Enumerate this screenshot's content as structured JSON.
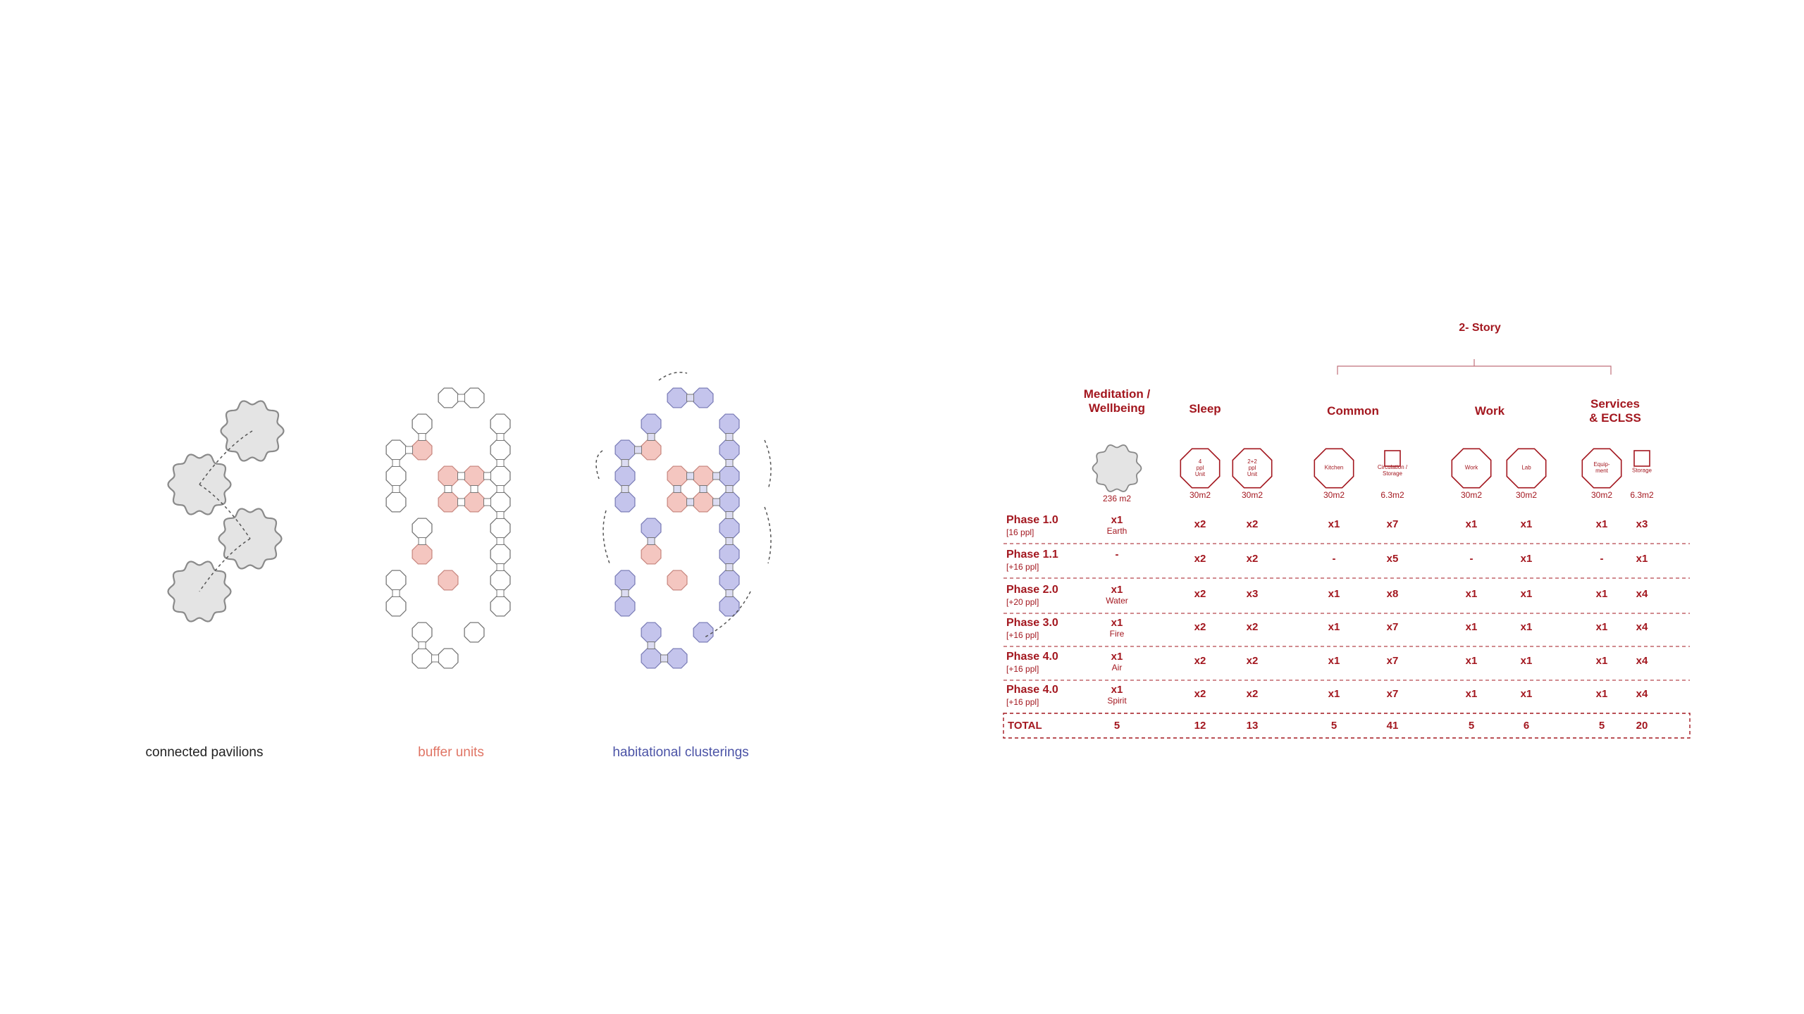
{
  "colors": {
    "accent": "#a3171f",
    "buffer": "#f4c6c0",
    "habitation": "#c4c4ec",
    "pavilion": "#e4e4e4"
  },
  "captions": {
    "connected": "connected pavilions",
    "buffer": "buffer units",
    "habitational": "habitational clusterings"
  },
  "table": {
    "story_label": "2- Story",
    "categories": [
      {
        "key": "meditation",
        "label_1": "Meditation /",
        "label_2": "Wellbeing"
      },
      {
        "key": "sleep",
        "label_1": "Sleep",
        "label_2": ""
      },
      {
        "key": "common",
        "label_1": "Common",
        "label_2": ""
      },
      {
        "key": "work",
        "label_1": "Work",
        "label_2": ""
      },
      {
        "key": "services",
        "label_1": "Services",
        "label_2": "& ECLSS"
      }
    ],
    "units": [
      {
        "shape": "blob",
        "text": "",
        "area": "236 m2"
      },
      {
        "shape": "octagon",
        "text_lines": [
          "4",
          "ppl",
          "Unit"
        ],
        "area": "30m2"
      },
      {
        "shape": "octagon",
        "text_lines": [
          "2+2",
          "ppl",
          "Unit"
        ],
        "area": "30m2"
      },
      {
        "shape": "octagon",
        "text_lines": [
          "Kitchen"
        ],
        "area": "30m2"
      },
      {
        "shape": "square",
        "text_lines": [
          "Circulation /",
          "Storage"
        ],
        "area": "6.3m2"
      },
      {
        "shape": "octagon",
        "text_lines": [
          "Work"
        ],
        "area": "30m2"
      },
      {
        "shape": "octagon",
        "text_lines": [
          "Lab"
        ],
        "area": "30m2"
      },
      {
        "shape": "octagon",
        "text_lines": [
          "Equip-",
          "ment"
        ],
        "area": "30m2"
      },
      {
        "shape": "square",
        "text_lines": [
          "Storage"
        ],
        "area": "6.3m2"
      }
    ],
    "rows": [
      {
        "phase": "Phase 1.0",
        "people": "[16 ppl]",
        "element": "Earth",
        "values": [
          "x1",
          "x2",
          "x2",
          "x1",
          "x7",
          "x1",
          "x1",
          "x1",
          "x3"
        ]
      },
      {
        "phase": "Phase 1.1",
        "people": "[+16 ppl]",
        "element": "",
        "values": [
          "-",
          "x2",
          "x2",
          "-",
          "x5",
          "-",
          "x1",
          "-",
          "x1"
        ]
      },
      {
        "phase": "Phase 2.0",
        "people": "[+20 ppl]",
        "element": "Water",
        "values": [
          "x1",
          "x2",
          "x3",
          "x1",
          "x8",
          "x1",
          "x1",
          "x1",
          "x4"
        ]
      },
      {
        "phase": "Phase 3.0",
        "people": "[+16 ppl]",
        "element": "Fire",
        "values": [
          "x1",
          "x2",
          "x2",
          "x1",
          "x7",
          "x1",
          "x1",
          "x1",
          "x4"
        ]
      },
      {
        "phase": "Phase 4.0",
        "people": "[+16 ppl]",
        "element": "Air",
        "values": [
          "x1",
          "x2",
          "x2",
          "x1",
          "x7",
          "x1",
          "x1",
          "x1",
          "x4"
        ]
      },
      {
        "phase": "Phase 4.0",
        "people": "[+16 ppl]",
        "element": "Spirit",
        "values": [
          "x1",
          "x2",
          "x2",
          "x1",
          "x7",
          "x1",
          "x1",
          "x1",
          "x4"
        ]
      }
    ],
    "total": {
      "label": "TOTAL",
      "values": [
        "5",
        "12",
        "13",
        "5",
        "41",
        "5",
        "6",
        "5",
        "20"
      ]
    }
  }
}
